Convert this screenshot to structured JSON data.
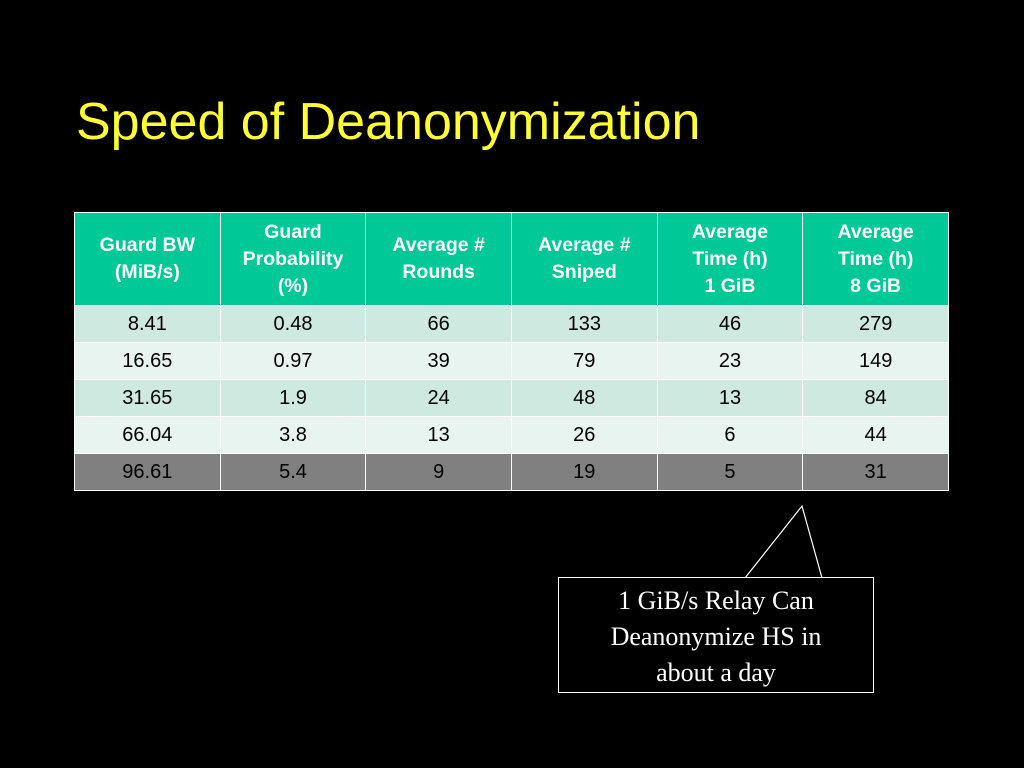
{
  "slide": {
    "title": "Speed of Deanonymization",
    "title_color": "#ffff33",
    "background": "#000000"
  },
  "table": {
    "header_color": "#00c896",
    "headers": [
      "Guard BW\n(MiB/s)",
      "Guard\nProbability\n(%)",
      "Average #\nRounds",
      "Average #\nSniped",
      "Average\nTime (h)\n1 GiB",
      "Average\nTime (h)\n8 GiB"
    ],
    "rows": [
      [
        "8.41",
        "0.48",
        "66",
        "133",
        "46",
        "279"
      ],
      [
        "16.65",
        "0.97",
        "39",
        "79",
        "23",
        "149"
      ],
      [
        "31.65",
        "1.9",
        "24",
        "48",
        "13",
        "84"
      ],
      [
        "66.04",
        "3.8",
        "13",
        "26",
        "6",
        "44"
      ],
      [
        "96.61",
        "5.4",
        "9",
        "19",
        "5",
        "31"
      ]
    ],
    "highlighted_row_index": 4,
    "highlight_color": "#808080"
  },
  "callout": {
    "lines": [
      "1 GiB/s Relay Can",
      "Deanonymize HS in",
      "about a day"
    ]
  }
}
